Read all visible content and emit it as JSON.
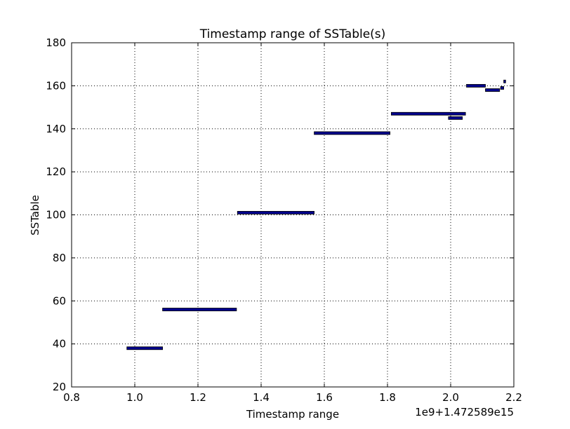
{
  "chart_data": {
    "type": "bar",
    "orientation": "horizontal-range",
    "title": "Timestamp range of SSTable(s)",
    "xlabel": "Timestamp range",
    "ylabel": "SSTable",
    "x_offset_label": "1e9+1.472589e15",
    "xlim": [
      0.8,
      2.2
    ],
    "ylim": [
      20,
      180
    ],
    "xticks": [
      "0.8",
      "1.0",
      "1.2",
      "1.4",
      "1.6",
      "1.8",
      "2.0",
      "2.2"
    ],
    "yticks": [
      "20",
      "40",
      "60",
      "80",
      "100",
      "120",
      "140",
      "160",
      "180"
    ],
    "grid": true,
    "bar_color": "#00008b",
    "segments": [
      {
        "sstable": 38,
        "start": 0.975,
        "end": 1.088
      },
      {
        "sstable": 56,
        "start": 1.088,
        "end": 1.322
      },
      {
        "sstable": 101,
        "start": 1.325,
        "end": 1.568
      },
      {
        "sstable": 138,
        "start": 1.568,
        "end": 1.808
      },
      {
        "sstable": 147,
        "start": 1.812,
        "end": 2.047
      },
      {
        "sstable": 145,
        "start": 1.993,
        "end": 2.037
      },
      {
        "sstable": 160,
        "start": 2.05,
        "end": 2.11
      },
      {
        "sstable": 158,
        "start": 2.11,
        "end": 2.155
      },
      {
        "sstable": 159,
        "start": 2.158,
        "end": 2.168
      },
      {
        "sstable": 162,
        "start": 2.168,
        "end": 2.174
      }
    ]
  }
}
